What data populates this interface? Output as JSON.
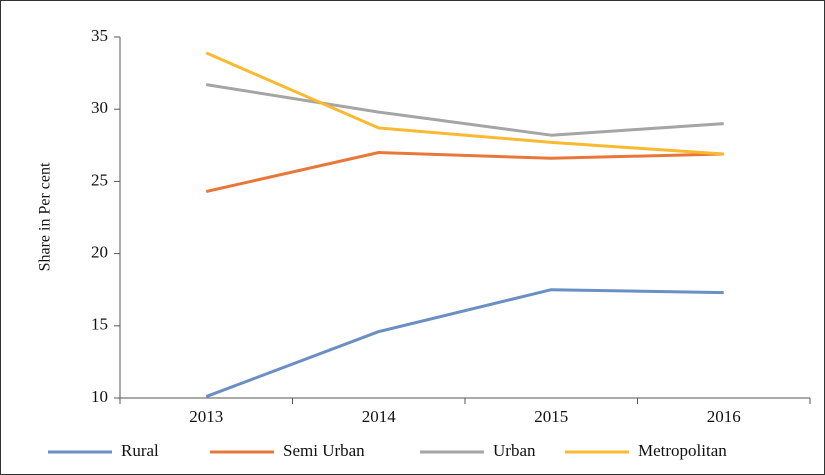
{
  "chart_data": {
    "type": "line",
    "y_label": "Share in Per cent",
    "categories": [
      "2013",
      "2014",
      "2015",
      "2016"
    ],
    "series": [
      {
        "name": "Rural",
        "color": "#6a8fc4",
        "values": [
          10.1,
          14.6,
          17.5,
          17.3
        ]
      },
      {
        "name": "Semi Urban",
        "color": "#e8773a",
        "values": [
          24.3,
          27.0,
          26.6,
          26.9
        ]
      },
      {
        "name": "Urban",
        "color": "#a5a5a5",
        "values": [
          31.7,
          29.8,
          28.2,
          29.0
        ]
      },
      {
        "name": "Metropolitan",
        "color": "#f9b930",
        "values": [
          33.9,
          28.7,
          27.7,
          26.9
        ]
      }
    ],
    "ylim": [
      10,
      35
    ],
    "yticks": [
      10,
      15,
      20,
      25,
      30,
      35
    ],
    "legend": "bottom"
  }
}
